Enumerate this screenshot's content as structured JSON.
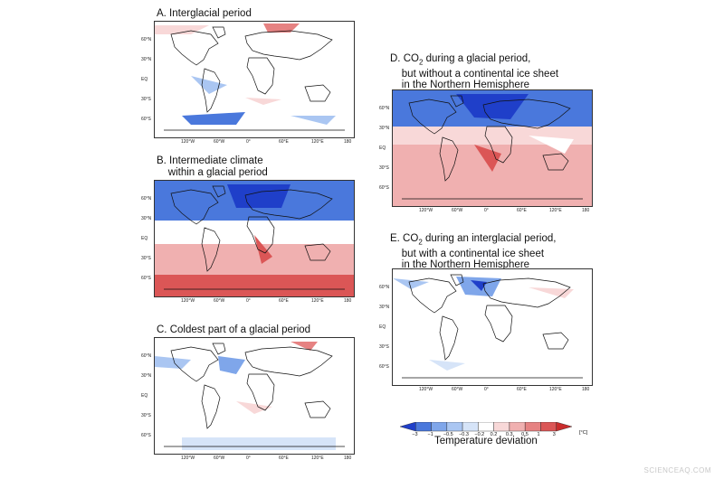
{
  "panels": [
    {
      "id": "A",
      "title_lines": [
        "A. Interglacial period"
      ]
    },
    {
      "id": "B",
      "title_lines": [
        "B. Intermediate climate",
        "    within a glacial period"
      ]
    },
    {
      "id": "C",
      "title_lines": [
        "C. Coldest part of a glacial period"
      ]
    },
    {
      "id": "D",
      "title_lines": [
        "D. CO₂ during a glacial period,",
        "    but without a continental ice sheet",
        "    in the Northern Hemisphere"
      ]
    },
    {
      "id": "E",
      "title_lines": [
        "E. CO₂ during an interglacial period,",
        "    but with a continental ice sheet",
        "    in the Northern Hemisphere"
      ]
    }
  ],
  "lat_ticks": [
    "60°N",
    "30°N",
    "EQ",
    "30°S",
    "60°S"
  ],
  "lon_ticks": [
    "120°W",
    "60°W",
    "0°",
    "60°E",
    "120°E",
    "180"
  ],
  "colorbar": {
    "labels": [
      "−3",
      "−1",
      "−0.5",
      "−0.3",
      "−0.2",
      "0.2",
      "0.3",
      "0.5",
      "1",
      "3"
    ],
    "unit": "[°C]",
    "title": "Temperature deviation",
    "colors": [
      "#1f3fc9",
      "#4a78dc",
      "#7fa6ea",
      "#aac6f2",
      "#d6e4f8",
      "#ffffff",
      "#f8d8d8",
      "#f0b0b0",
      "#e68282",
      "#db5656",
      "#c92c2c"
    ]
  },
  "watermark": "SCIENCEAQ.COM"
}
